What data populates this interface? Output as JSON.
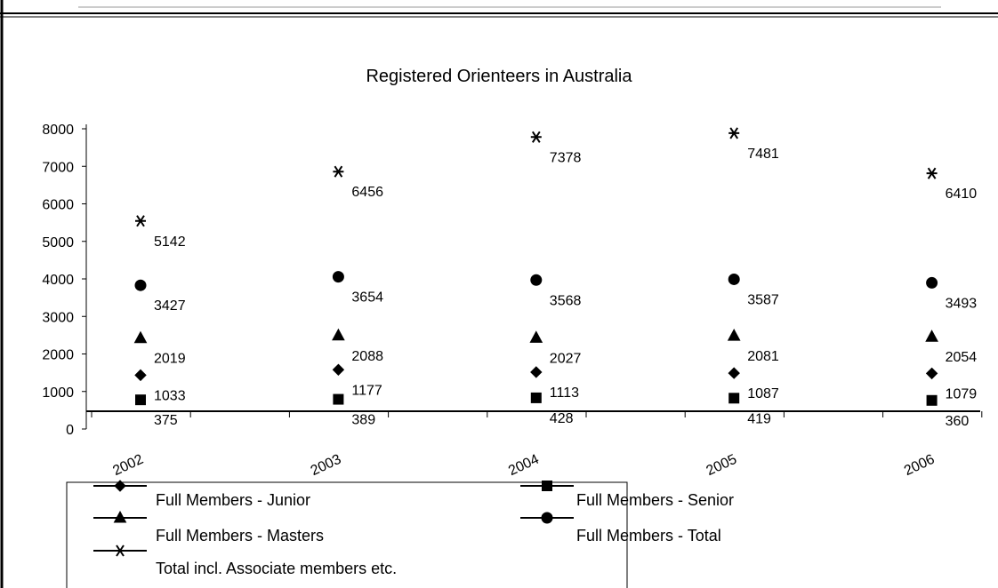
{
  "chart_data": {
    "type": "scatter",
    "title": "Registered Orienteers in Australia",
    "categories": [
      "2002",
      "2003",
      "2004",
      "2005",
      "2006"
    ],
    "series": [
      {
        "name": "Full Members  - Junior",
        "color": "#000000",
        "marker": "diamond",
        "values": [
          1033,
          1177,
          1113,
          1087,
          1079
        ]
      },
      {
        "name": "Full Members  - Senior",
        "color": "#000000",
        "marker": "square",
        "values": [
          375,
          389,
          428,
          419,
          360
        ]
      },
      {
        "name": "Full Members  - Masters",
        "color": "#000000",
        "marker": "triangle",
        "values": [
          2019,
          2088,
          2027,
          2081,
          2054
        ]
      },
      {
        "name": "Full Members  - Total",
        "color": "#000000",
        "marker": "circle",
        "values": [
          3427,
          3654,
          3568,
          3587,
          3493
        ]
      },
      {
        "name": "Total incl. Associate members etc.",
        "color": "#000000",
        "marker": "star",
        "values": [
          5142,
          6456,
          7378,
          7481,
          6410
        ]
      }
    ],
    "ylim": [
      0,
      8000
    ],
    "yticks": [
      0,
      1000,
      2000,
      3000,
      4000,
      5000,
      6000,
      7000,
      8000
    ],
    "grid": false
  }
}
